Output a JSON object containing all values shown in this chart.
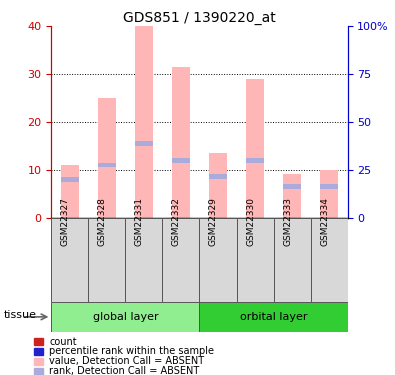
{
  "title": "GDS851 / 1390220_at",
  "samples": [
    "GSM22327",
    "GSM22328",
    "GSM22331",
    "GSM22332",
    "GSM22329",
    "GSM22330",
    "GSM22333",
    "GSM22334"
  ],
  "group1_name": "global layer",
  "group1_color": "#90EE90",
  "group1_count": 4,
  "group2_name": "orbital layer",
  "group2_color": "#32CD32",
  "group2_count": 4,
  "bar_top": [
    11,
    25,
    40,
    31.5,
    13.5,
    29,
    9,
    10
  ],
  "rank_value": [
    8,
    11,
    15.5,
    12,
    8.5,
    12,
    6.5,
    6.5
  ],
  "bar_color_absent": "#FFB6B6",
  "rank_color_absent": "#AAAADD",
  "ylim_left": [
    0,
    40
  ],
  "ylim_right": [
    0,
    100
  ],
  "yticks_left": [
    0,
    10,
    20,
    30,
    40
  ],
  "yticks_right": [
    0,
    25,
    50,
    75,
    100
  ],
  "ytick_labels_right": [
    "0",
    "25",
    "50",
    "75",
    "100%"
  ],
  "left_axis_color": "#CC0000",
  "right_axis_color": "#0000CC",
  "tissue_label": "tissue",
  "legend_items": [
    {
      "color": "#CC2222",
      "label": "count"
    },
    {
      "color": "#2222CC",
      "label": "percentile rank within the sa mple"
    },
    {
      "color": "#FFB6B6",
      "label": "value, Detection Call = ABSENT"
    },
    {
      "color": "#AAAADD",
      "label": "rank, Detection Call = ABSENT"
    }
  ]
}
